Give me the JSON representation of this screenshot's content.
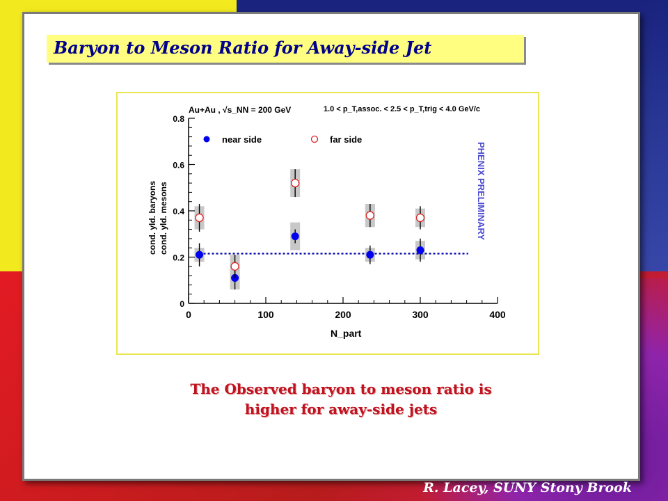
{
  "slide": {
    "title": "Baryon to Meson Ratio for Away-side Jet",
    "caption_line1": "The Observed baryon to meson ratio is",
    "caption_line2": "higher for away-side jets",
    "credit": "R. Lacey, SUNY  Stony Brook"
  },
  "chart_data": {
    "type": "scatter",
    "header_left": "Au+Au , √s_NN = 200 GeV",
    "header_right": "1.0 < p_T,assoc. < 2.5 < p_T,trig < 4.0 GeV/c",
    "watermark": "PHENIX PRELIMINARY",
    "xlabel": "N_part",
    "ylabel_top": "cond. yld. baryons",
    "ylabel_bottom": "cond. yld. mesons",
    "xlim": [
      0,
      400
    ],
    "ylim": [
      0,
      0.8
    ],
    "x_ticks": [
      0,
      100,
      200,
      300,
      400
    ],
    "y_ticks": [
      0,
      0.2,
      0.4,
      0.6,
      0.8
    ],
    "y_tick_labels": [
      "0",
      "0.2",
      "0.4",
      "0.6",
      "0.8"
    ],
    "series": [
      {
        "name": "near side",
        "color": "#0000ee",
        "marker": "filled-circle",
        "points": [
          {
            "x": 14,
            "y": 0.21,
            "err": 0.05,
            "sys": 0.03
          },
          {
            "x": 60,
            "y": 0.11,
            "err": 0.05,
            "sys": 0.05
          },
          {
            "x": 138,
            "y": 0.29,
            "err": 0.03,
            "sys": 0.06
          },
          {
            "x": 235,
            "y": 0.21,
            "err": 0.04,
            "sys": 0.03
          },
          {
            "x": 300,
            "y": 0.23,
            "err": 0.05,
            "sys": 0.04
          }
        ]
      },
      {
        "name": "far side",
        "color": "#dd2222",
        "marker": "open-circle",
        "points": [
          {
            "x": 14,
            "y": 0.37,
            "err": 0.06,
            "sys": 0.05
          },
          {
            "x": 60,
            "y": 0.16,
            "err": 0.05,
            "sys": 0.05
          },
          {
            "x": 138,
            "y": 0.52,
            "err": 0.06,
            "sys": 0.06
          },
          {
            "x": 235,
            "y": 0.38,
            "err": 0.05,
            "sys": 0.05
          },
          {
            "x": 300,
            "y": 0.37,
            "err": 0.05,
            "sys": 0.04
          }
        ]
      }
    ],
    "reference_line": {
      "y": 0.215,
      "x_from": 14,
      "x_to": 362,
      "color": "#0000aa",
      "style": "dotted"
    },
    "colors": {
      "sys_band": "#c8c8c8",
      "watermark": "#4a4ad0"
    }
  }
}
